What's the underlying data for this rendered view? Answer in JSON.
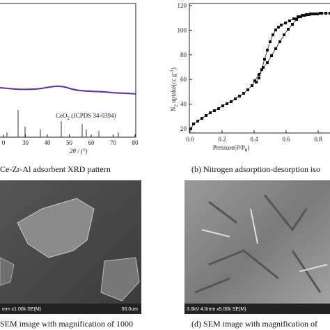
{
  "xrd": {
    "x_ticks": [
      "0",
      "30",
      "40",
      "50",
      "60",
      "70",
      "80"
    ],
    "x_label": "2θ / (°)",
    "ref_label": {
      "main": "CeO",
      "sub": "2",
      "rest": " (JCPDS 34-0394)"
    },
    "caption": "Ce-Zr-Al adsorbent XRD pattern"
  },
  "isotherm": {
    "y_ticks": [
      "120",
      "100",
      "80",
      "60",
      "40",
      "20"
    ],
    "x_ticks": [
      "0.0",
      "0.2",
      "0.4",
      "0.6",
      "0.8"
    ],
    "y_label": {
      "main": "N",
      "sub": "2",
      "rest": " uptake(cc g",
      "sup": "-1",
      "end": ")"
    },
    "x_label": {
      "main": "Pressure(P/P",
      "sub": "0",
      "end": ")"
    },
    "caption": "(b) Nitrogen adsorption-desorption iso"
  },
  "sem_left": {
    "info": "mm x1.00k SE(M)",
    "scale": "50.0um",
    "caption": "SEM  image with magnification of 1000"
  },
  "sem_right": {
    "info": "3.0kV 4.0mm x5.00k SE(M)",
    "caption": "(d) SEM  image with magnification of"
  }
}
